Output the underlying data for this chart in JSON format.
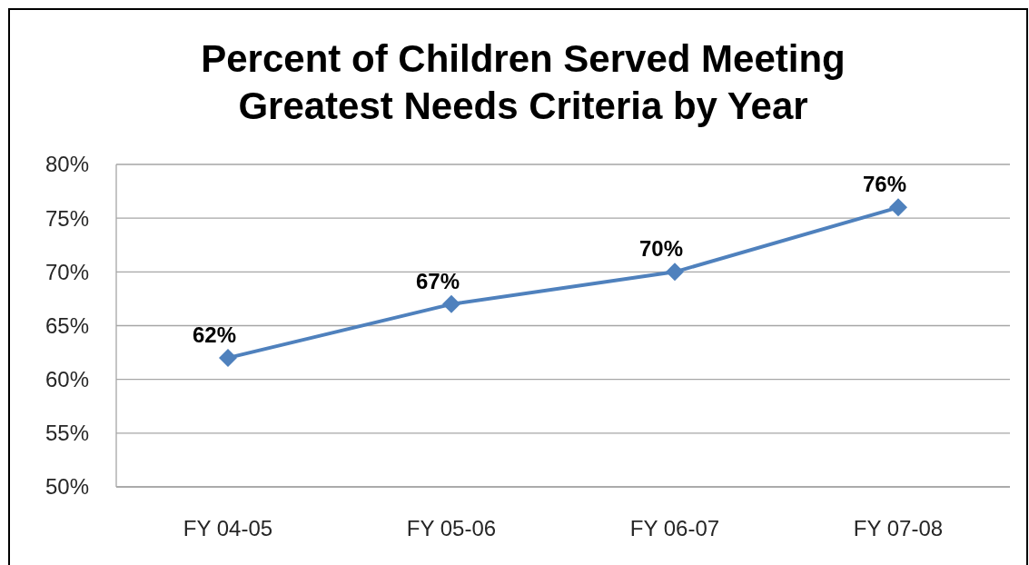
{
  "chart_data": {
    "type": "line",
    "title": "Percent of Children Served Meeting Greatest Needs Criteria by Year",
    "categories": [
      "FY 04-05",
      "FY 05-06",
      "FY 06-07",
      "FY 07-08"
    ],
    "series": [
      {
        "color": "#4f81bd",
        "values": [
          62,
          67,
          70,
          76
        ],
        "value_labels": [
          "62%",
          "67%",
          "70%",
          "76%"
        ]
      }
    ],
    "ylim": [
      50,
      80
    ],
    "yticks": [
      {
        "value": 50,
        "label": "50%"
      },
      {
        "value": 55,
        "label": "55%"
      },
      {
        "value": 60,
        "label": "60%"
      },
      {
        "value": 65,
        "label": "65%"
      },
      {
        "value": 70,
        "label": "70%"
      },
      {
        "value": 75,
        "label": "75%"
      },
      {
        "value": 80,
        "label": "80%"
      }
    ],
    "grid": "y",
    "marker": "diamond",
    "line_style": "solid"
  }
}
